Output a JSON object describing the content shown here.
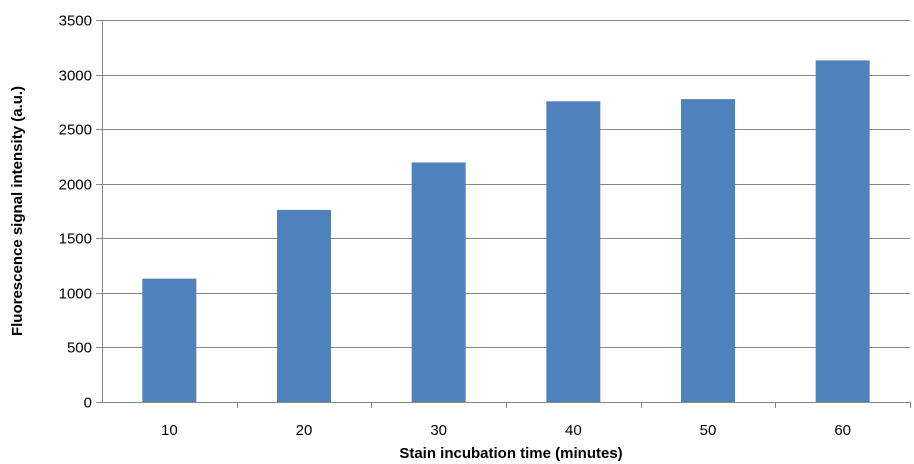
{
  "chart_data": {
    "type": "bar",
    "title": "",
    "xlabel": "Stain incubation time (minutes)",
    "ylabel": "Fluorescence signal intensity (a.u.)",
    "categories": [
      "10",
      "20",
      "30",
      "40",
      "50",
      "60"
    ],
    "values": [
      1130,
      1760,
      2195,
      2755,
      2775,
      3130
    ],
    "ylim": [
      0,
      3500
    ],
    "yticks": [
      0,
      500,
      1000,
      1500,
      2000,
      2500,
      3000,
      3500
    ],
    "grid": true,
    "legend": "none",
    "bar_color": "#4F81BD",
    "grid_color": "#868686"
  }
}
